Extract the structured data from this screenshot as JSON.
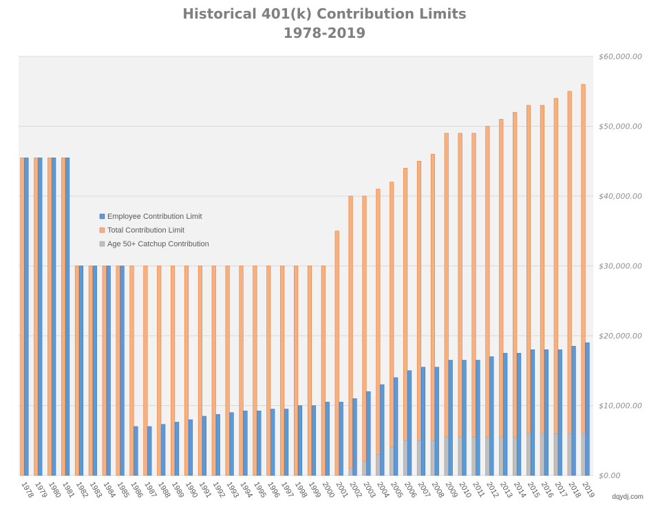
{
  "chart_data": {
    "type": "bar",
    "title": "Historical 401(k) Contribution Limits",
    "subtitle": "1978-2019",
    "categories": [
      "1978",
      "1979",
      "1980",
      "1981",
      "1982",
      "1983",
      "1984",
      "1985",
      "1986",
      "1987",
      "1988",
      "1989",
      "1990",
      "1991",
      "1992",
      "1993",
      "1994",
      "1995",
      "1996",
      "1997",
      "1998",
      "1999",
      "2000",
      "2001",
      "2002",
      "2003",
      "2004",
      "2005",
      "2006",
      "2007",
      "2008",
      "2009",
      "2010",
      "2011",
      "2012",
      "2013",
      "2014",
      "2015",
      "2016",
      "2017",
      "2018",
      "2019"
    ],
    "series": [
      {
        "name": "Employee Contribution Limit",
        "color": "#5b9bd5",
        "values": [
          45475,
          45475,
          45475,
          45475,
          30000,
          30000,
          30000,
          30000,
          7000,
          7000,
          7313,
          7627,
          7979,
          8475,
          8728,
          8994,
          9240,
          9240,
          9500,
          9500,
          10000,
          10000,
          10500,
          10500,
          11000,
          12000,
          13000,
          14000,
          15000,
          15500,
          15500,
          16500,
          16500,
          16500,
          17000,
          17500,
          17500,
          18000,
          18000,
          18000,
          18500,
          19000
        ]
      },
      {
        "name": "Total Contribution Limit",
        "color": "#f4b183",
        "values": [
          45475,
          45475,
          45475,
          45475,
          30000,
          30000,
          30000,
          30000,
          30000,
          30000,
          30000,
          30000,
          30000,
          30000,
          30000,
          30000,
          30000,
          30000,
          30000,
          30000,
          30000,
          30000,
          30000,
          35000,
          40000,
          40000,
          41000,
          42000,
          44000,
          45000,
          46000,
          49000,
          49000,
          49000,
          50000,
          51000,
          52000,
          53000,
          53000,
          54000,
          55000,
          56000
        ]
      },
      {
        "name": "Age 50+ Catchup Contribution",
        "color": "#bfbfbf",
        "values": [
          0,
          0,
          0,
          0,
          0,
          0,
          0,
          0,
          0,
          0,
          0,
          0,
          0,
          0,
          0,
          0,
          0,
          0,
          0,
          0,
          0,
          0,
          0,
          0,
          1000,
          2000,
          3000,
          4000,
          5000,
          5000,
          5000,
          5500,
          5500,
          5500,
          5500,
          5500,
          5500,
          6000,
          6000,
          6000,
          6000,
          6000
        ]
      }
    ],
    "y_tick_labels": [
      "$0.00",
      "$10,000.00",
      "$20,000.00",
      "$30,000.00",
      "$40,000.00",
      "$50,000.00",
      "$60,000.00"
    ],
    "ylim": [
      0,
      60000
    ],
    "y_axis_side": "right",
    "legend_position": "left-middle",
    "grid": true,
    "xlabel": "",
    "ylabel": "",
    "colors": {
      "plot_background": "#f2f2f2",
      "grid": "#d9d9d9",
      "title": "#7f7f7f"
    }
  },
  "watermark": "dqydj.com"
}
